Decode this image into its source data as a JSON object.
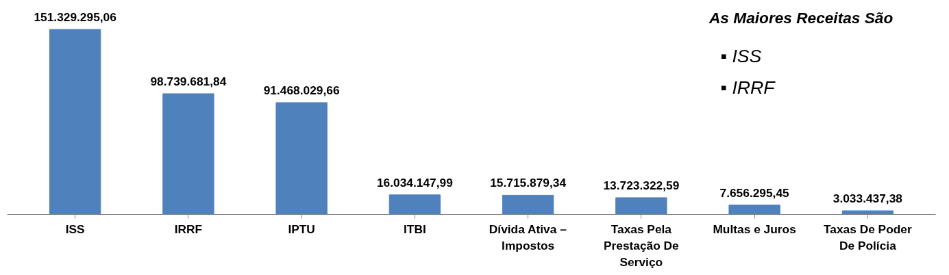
{
  "chart_data": {
    "type": "bar",
    "categories": [
      "ISS",
      "IRRF",
      "IPTU",
      "ITBI",
      "Dívida Ativa – Impostos",
      "Taxas Pela Prestação De Serviço",
      "Multas e Juros",
      "Taxas De Poder De Polícia"
    ],
    "values": [
      151329295.06,
      98739681.84,
      91468029.66,
      16034147.99,
      15715879.34,
      13723322.59,
      7656295.45,
      3033437.38
    ],
    "value_labels": [
      "151.329.295,06",
      "98.739.681,84",
      "91.468.029,66",
      "16.034.147,99",
      "15.715.879,34",
      "13.723.322,59",
      "7.656.295,45",
      "3.033.437,38"
    ],
    "color": "#4f81bd",
    "annotations": [
      "As Maiores Receitas São",
      "▪      ISS",
      "▪      IRRF"
    ]
  }
}
